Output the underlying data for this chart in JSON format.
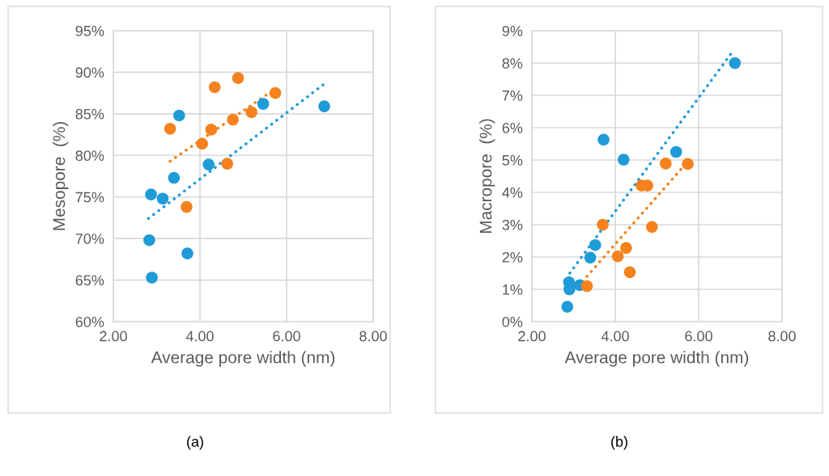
{
  "chart_data": [
    {
      "type": "scatter",
      "xlabel": "Average pore width (nm)",
      "ylabel": "Mesopore  (%)",
      "annotations": [
        "(a)"
      ],
      "xlim": [
        2,
        8
      ],
      "xticks": [
        {
          "value": 2,
          "label": "2.00"
        },
        {
          "value": 4,
          "label": "4.00"
        },
        {
          "value": 6,
          "label": "6.00"
        },
        {
          "value": 8,
          "label": "8.00"
        }
      ],
      "ylim": [
        60,
        95
      ],
      "yticks": [
        {
          "value": 60,
          "label": "60%"
        },
        {
          "value": 65,
          "label": "65%"
        },
        {
          "value": 70,
          "label": "70%"
        },
        {
          "value": 75,
          "label": "75%"
        },
        {
          "value": 80,
          "label": "80%"
        },
        {
          "value": 85,
          "label": "85%"
        },
        {
          "value": 90,
          "label": "90%"
        },
        {
          "value": 95,
          "label": "95%"
        }
      ],
      "grid": true,
      "marker": "circle",
      "series": [
        {
          "color": "#1f9bd7",
          "x": [
            3.52,
            5.46,
            6.87,
            4.2,
            3.4,
            2.87,
            3.14,
            2.83,
            3.71,
            2.89
          ],
          "values": [
            84.8,
            86.2,
            85.9,
            78.9,
            77.3,
            75.3,
            74.8,
            69.8,
            68.2,
            65.3
          ]
        },
        {
          "color": "#f5821f",
          "x": [
            4.88,
            4.34,
            5.74,
            5.19,
            4.76,
            3.31,
            4.26,
            4.05,
            4.63,
            3.69
          ],
          "values": [
            89.3,
            88.2,
            87.5,
            85.2,
            84.3,
            83.2,
            83.1,
            81.4,
            79.0,
            73.8
          ]
        },
        {
          "type": "line",
          "line_style": "dotted",
          "marker": "none",
          "color": "#1f9bd7",
          "x": [
            2.81,
            6.87
          ],
          "values": [
            72.4,
            88.6
          ]
        },
        {
          "type": "line",
          "line_style": "dotted",
          "marker": "none",
          "color": "#f5821f",
          "x": [
            3.31,
            5.54
          ],
          "values": [
            79.3,
            87.3
          ]
        }
      ]
    },
    {
      "type": "scatter",
      "xlabel": "Average pore width (nm)",
      "ylabel": "Macropore  (%)",
      "annotations": [
        "(b)"
      ],
      "xlim": [
        2,
        8
      ],
      "xticks": [
        {
          "value": 2,
          "label": "2.00"
        },
        {
          "value": 4,
          "label": "4.00"
        },
        {
          "value": 6,
          "label": "6.00"
        },
        {
          "value": 8,
          "label": "8.00"
        }
      ],
      "ylim": [
        0,
        9
      ],
      "yticks": [
        {
          "value": 0,
          "label": "0%"
        },
        {
          "value": 1,
          "label": "1%"
        },
        {
          "value": 2,
          "label": "2%"
        },
        {
          "value": 3,
          "label": "3%"
        },
        {
          "value": 4,
          "label": "4%"
        },
        {
          "value": 5,
          "label": "5%"
        },
        {
          "value": 6,
          "label": "6%"
        },
        {
          "value": 7,
          "label": "7%"
        },
        {
          "value": 8,
          "label": "8%"
        },
        {
          "value": 9,
          "label": "9%"
        }
      ],
      "grid": true,
      "marker": "circle",
      "series": [
        {
          "color": "#1f9bd7",
          "x": [
            6.87,
            3.72,
            4.2,
            5.46,
            3.52,
            3.4,
            2.89,
            3.15,
            2.9,
            2.85
          ],
          "values": [
            8.0,
            5.63,
            5.01,
            5.25,
            2.37,
            1.98,
            1.22,
            1.13,
            1.0,
            0.46
          ]
        },
        {
          "color": "#f5821f",
          "x": [
            5.21,
            5.74,
            4.63,
            4.77,
            3.7,
            4.88,
            4.26,
            4.06,
            4.35,
            3.32
          ],
          "values": [
            4.89,
            4.88,
            4.21,
            4.21,
            3.0,
            2.93,
            2.28,
            2.02,
            1.53,
            1.1
          ]
        },
        {
          "type": "line",
          "line_style": "dotted",
          "marker": "none",
          "color": "#1f9bd7",
          "x": [
            2.91,
            6.8
          ],
          "values": [
            1.5,
            8.33
          ]
        },
        {
          "type": "line",
          "line_style": "dotted",
          "marker": "none",
          "color": "#f5821f",
          "x": [
            3.32,
            5.69
          ],
          "values": [
            1.4,
            4.88
          ]
        }
      ]
    }
  ]
}
